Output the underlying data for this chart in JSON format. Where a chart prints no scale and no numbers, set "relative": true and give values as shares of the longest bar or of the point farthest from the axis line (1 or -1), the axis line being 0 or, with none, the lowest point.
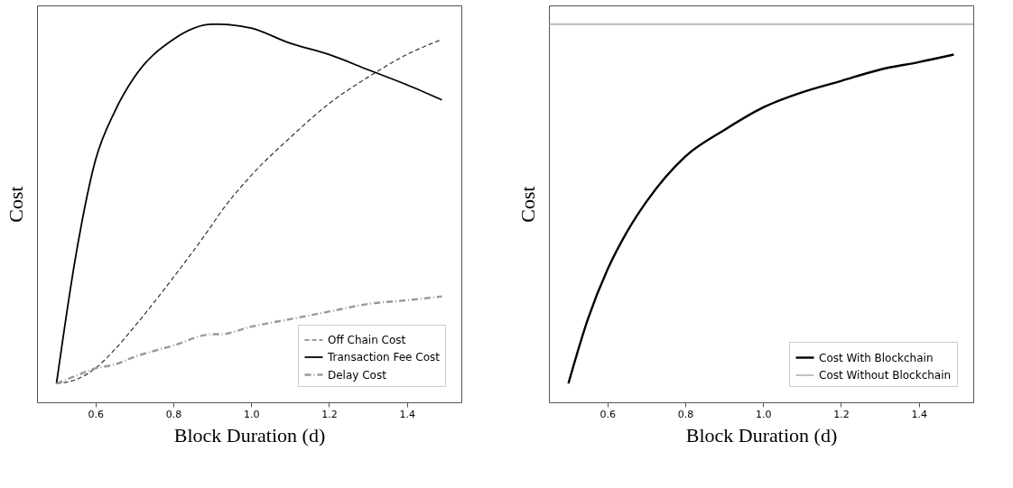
{
  "chart_data": [
    {
      "type": "line",
      "relative": true,
      "xlabel": "Block Duration (d)",
      "ylabel": "Cost",
      "xlim": [
        0.45,
        1.54
      ],
      "xticks": [
        0.6,
        0.8,
        {
          "value": 1.0,
          "label": "1.0"
        },
        1.2,
        1.4
      ],
      "tick_labels": "x",
      "legend": "bottom right",
      "grid": false,
      "x": [
        0.5,
        0.55,
        0.6,
        0.65,
        0.7,
        0.8,
        0.9,
        0.92,
        1.0,
        1.1,
        1.2,
        1.3,
        1.4,
        1.49
      ],
      "series": [
        {
          "name": "Off Chain Cost",
          "color": "#333333",
          "line_style": "dashed",
          "values": [
            0.05,
            0.06,
            0.09,
            0.14,
            0.2,
            0.33,
            0.47,
            0.5,
            0.6,
            0.7,
            0.79,
            0.86,
            0.92,
            0.96
          ]
        },
        {
          "name": "Transaction Fee Cost",
          "color": "#000000",
          "line_style": "solid",
          "values": [
            0.05,
            0.39,
            0.64,
            0.77,
            0.86,
            0.96,
            1.0,
            1.0,
            0.99,
            0.95,
            0.92,
            0.88,
            0.84,
            0.8
          ]
        },
        {
          "name": "Delay Cost",
          "color": "#999999",
          "line_style": "dashdot",
          "values": [
            0.05,
            0.07,
            0.09,
            0.1,
            0.12,
            0.15,
            0.18,
            0.18,
            0.2,
            0.22,
            0.24,
            0.26,
            0.27,
            0.28
          ]
        }
      ]
    },
    {
      "type": "line",
      "relative": true,
      "xlabel": "Block Duration (d)",
      "ylabel": "Cost",
      "xlim": [
        0.45,
        1.54
      ],
      "xticks": [
        0.6,
        0.8,
        {
          "value": 1.0,
          "label": "1.0"
        },
        1.2,
        1.4
      ],
      "tick_labels": "x",
      "legend": "bottom right",
      "grid": false,
      "x": [
        0.5,
        0.55,
        0.6,
        0.65,
        0.7,
        0.8,
        0.9,
        1.0,
        1.1,
        1.2,
        1.3,
        1.4,
        1.49
      ],
      "series": [
        {
          "name": "Cost With Blockchain",
          "color": "#000000",
          "line_style": "solid",
          "values": [
            0.05,
            0.22,
            0.35,
            0.45,
            0.53,
            0.65,
            0.72,
            0.78,
            0.82,
            0.85,
            0.88,
            0.9,
            0.92
          ]
        },
        {
          "name": "Cost Without Blockchain",
          "color": "#999999",
          "line_style": "solid",
          "x": [
            0.45,
            1.54
          ],
          "values": [
            1.0,
            1.0
          ]
        }
      ]
    }
  ]
}
